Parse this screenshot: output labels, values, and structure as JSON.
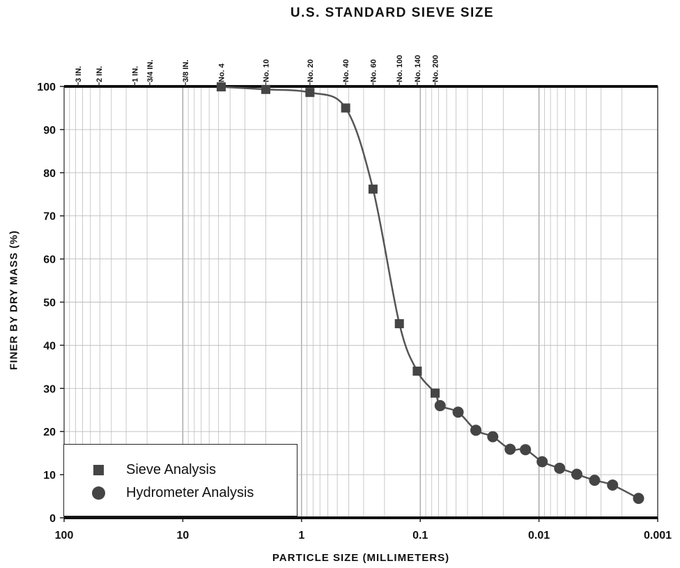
{
  "chart_data": {
    "type": "scatter",
    "title": "U.S. STANDARD SIEVE SIZE",
    "xlabel": "PARTICLE SIZE (MILLIMETERS)",
    "ylabel": "FINER BY DRY MASS (%)",
    "x_scale": "log",
    "x_reversed": true,
    "xlim": [
      100,
      0.001
    ],
    "ylim": [
      0,
      100
    ],
    "x_ticks": [
      {
        "value": 100,
        "label": "100"
      },
      {
        "value": 10,
        "label": "10"
      },
      {
        "value": 1,
        "label": "1"
      },
      {
        "value": 0.1,
        "label": "0.1"
      },
      {
        "value": 0.01,
        "label": "0.01"
      },
      {
        "value": 0.001,
        "label": "0.001"
      }
    ],
    "y_ticks": [
      0,
      10,
      20,
      30,
      40,
      50,
      60,
      70,
      80,
      90,
      100
    ],
    "grid": true,
    "sieve_sizes": [
      {
        "label": "3 IN.",
        "value": 76.2
      },
      {
        "label": "2 IN.",
        "value": 50.8
      },
      {
        "label": "1 IN.",
        "value": 25.4
      },
      {
        "label": "3/4 IN.",
        "value": 19.0
      },
      {
        "label": "3/8 IN.",
        "value": 9.5
      },
      {
        "label": "No. 4",
        "value": 4.75
      },
      {
        "label": "No. 10",
        "value": 2.0
      },
      {
        "label": "No. 20",
        "value": 0.85
      },
      {
        "label": "No. 40",
        "value": 0.425
      },
      {
        "label": "No. 60",
        "value": 0.25
      },
      {
        "label": "No. 100",
        "value": 0.15
      },
      {
        "label": "No. 140",
        "value": 0.106
      },
      {
        "label": "No. 200",
        "value": 0.075
      }
    ],
    "series": [
      {
        "name": "Sieve Analysis",
        "marker": "square",
        "points": [
          {
            "x": 4.75,
            "y": 99.9
          },
          {
            "x": 2.0,
            "y": 99.3
          },
          {
            "x": 0.85,
            "y": 98.6
          },
          {
            "x": 0.425,
            "y": 95.0
          },
          {
            "x": 0.25,
            "y": 76.2
          },
          {
            "x": 0.15,
            "y": 45.0
          },
          {
            "x": 0.106,
            "y": 34.0
          },
          {
            "x": 0.075,
            "y": 28.9
          }
        ]
      },
      {
        "name": "Hydrometer Analysis",
        "marker": "circle",
        "points": [
          {
            "x": 0.068,
            "y": 26.0
          },
          {
            "x": 0.048,
            "y": 24.5
          },
          {
            "x": 0.034,
            "y": 20.3
          },
          {
            "x": 0.0245,
            "y": 18.8
          },
          {
            "x": 0.0175,
            "y": 15.9
          },
          {
            "x": 0.013,
            "y": 15.8
          },
          {
            "x": 0.0094,
            "y": 13.0
          },
          {
            "x": 0.0067,
            "y": 11.5
          },
          {
            "x": 0.0048,
            "y": 10.1
          },
          {
            "x": 0.0034,
            "y": 8.7
          },
          {
            "x": 0.0024,
            "y": 7.6
          },
          {
            "x": 0.00145,
            "y": 4.5
          }
        ]
      }
    ],
    "legend": {
      "position": "bottom-left"
    },
    "colors": {
      "marker": "#454545",
      "curve": "#555555",
      "grid": "#bdbdbd",
      "frame": "#222222"
    }
  }
}
